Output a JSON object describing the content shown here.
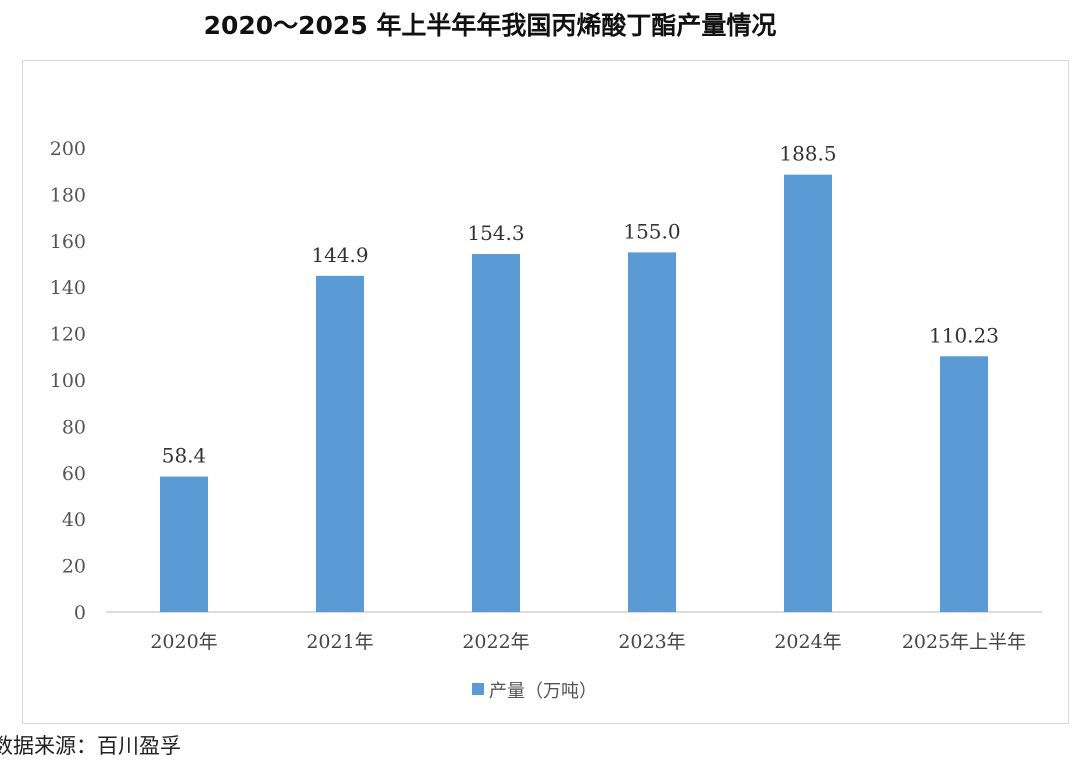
{
  "chart_data": {
    "type": "bar",
    "title": "2020～2025 年上半年年我国丙烯酸丁酯产量情况",
    "categories": [
      "2020年",
      "2021年",
      "2022年",
      "2023年",
      "2024年",
      "2025年上半年"
    ],
    "series": [
      {
        "name": "产量（万吨）",
        "values": [
          58.4,
          144.9,
          154.3,
          155.0,
          188.5,
          110.23
        ],
        "color": "#5b9bd5"
      }
    ],
    "data_labels": [
      "58.4",
      "144.9",
      "154.3",
      "155.0",
      "188.5",
      "110.23"
    ],
    "y_ticks": [
      "0",
      "20",
      "40",
      "60",
      "80",
      "100",
      "120",
      "140",
      "160",
      "180",
      "200"
    ],
    "ylim": [
      0,
      200
    ],
    "xlabel": "",
    "ylabel": "",
    "grid": false,
    "legend_position": "bottom"
  },
  "source": "数据来源：百川盈孚"
}
